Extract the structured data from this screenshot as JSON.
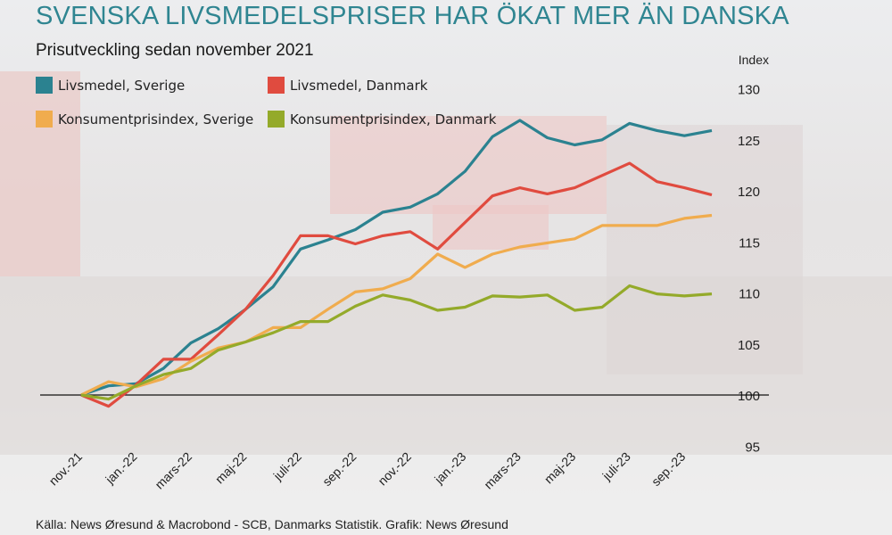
{
  "title": "SVENSKA LIVSMEDELSPRISER HAR ÖKAT MER ÄN DANSKA",
  "subtitle": "Prisutveckling sedan november 2021",
  "source": "Källa: News Øresund & Macrobond - SCB, Danmarks Statistik. Grafik: News Øresund",
  "chart_data": {
    "type": "line",
    "title": "SVENSKA LIVSMEDELSPRISER HAR ÖKAT MER ÄN DANSKA",
    "subtitle": "Prisutveckling sedan november 2021",
    "ylabel": "Index",
    "ylim": [
      95,
      130
    ],
    "yticks": [
      95,
      100,
      105,
      110,
      115,
      120,
      125,
      130
    ],
    "baseline": 100,
    "grid": false,
    "legend_position": "top-left",
    "x": [
      "nov.-21",
      "dec.-21",
      "jan.-22",
      "feb.-22",
      "mars-22",
      "apr.-22",
      "maj-22",
      "juni-22",
      "juli-22",
      "aug.-22",
      "sep.-22",
      "okt.-22",
      "nov.-22",
      "dec.-22",
      "jan.-23",
      "feb.-23",
      "mars-23",
      "apr.-23",
      "maj-23",
      "juni-23",
      "juli-23",
      "aug.-23",
      "sep.-23",
      "okt.-23"
    ],
    "xtick_labels": [
      "nov.-21",
      "jan.-22",
      "mars-22",
      "maj-22",
      "juli-22",
      "sep.-22",
      "nov.-22",
      "jan.-23",
      "mars-23",
      "maj-23",
      "juli-23",
      "sep.-23"
    ],
    "series": [
      {
        "name": "Livsmedel, Sverige",
        "color": "#2b8290",
        "values": [
          100,
          100.9,
          101.1,
          102.6,
          105.1,
          106.5,
          108.4,
          110.6,
          114.3,
          115.2,
          116.2,
          117.9,
          118.4,
          119.7,
          121.9,
          125.3,
          126.9,
          125.2,
          124.5,
          125.0,
          126.6,
          125.9,
          125.4,
          125.9
        ]
      },
      {
        "name": "Livsmedel, Danmark",
        "color": "#e04b3f",
        "values": [
          100,
          98.9,
          101.0,
          103.5,
          103.5,
          105.9,
          108.4,
          111.7,
          115.6,
          115.6,
          114.8,
          115.6,
          116.0,
          114.3,
          116.9,
          119.5,
          120.3,
          119.7,
          120.3,
          121.5,
          122.7,
          120.9,
          120.3,
          119.6
        ]
      },
      {
        "name": "Konsumentprisindex, Sverige",
        "color": "#f0ac4e",
        "values": [
          100,
          101.3,
          100.8,
          101.6,
          103.3,
          104.6,
          105.2,
          106.6,
          106.6,
          108.4,
          110.1,
          110.4,
          111.4,
          113.8,
          112.5,
          113.8,
          114.5,
          114.9,
          115.3,
          116.6,
          116.6,
          116.6,
          117.3,
          117.6
        ]
      },
      {
        "name": "Konsumentprisindex, Danmark",
        "color": "#94aa2a",
        "values": [
          100,
          99.6,
          100.9,
          102.0,
          102.6,
          104.4,
          105.2,
          106.1,
          107.2,
          107.2,
          108.7,
          109.8,
          109.3,
          108.3,
          108.6,
          109.7,
          109.6,
          109.8,
          108.3,
          108.6,
          110.7,
          109.9,
          109.7,
          109.9
        ]
      }
    ]
  }
}
